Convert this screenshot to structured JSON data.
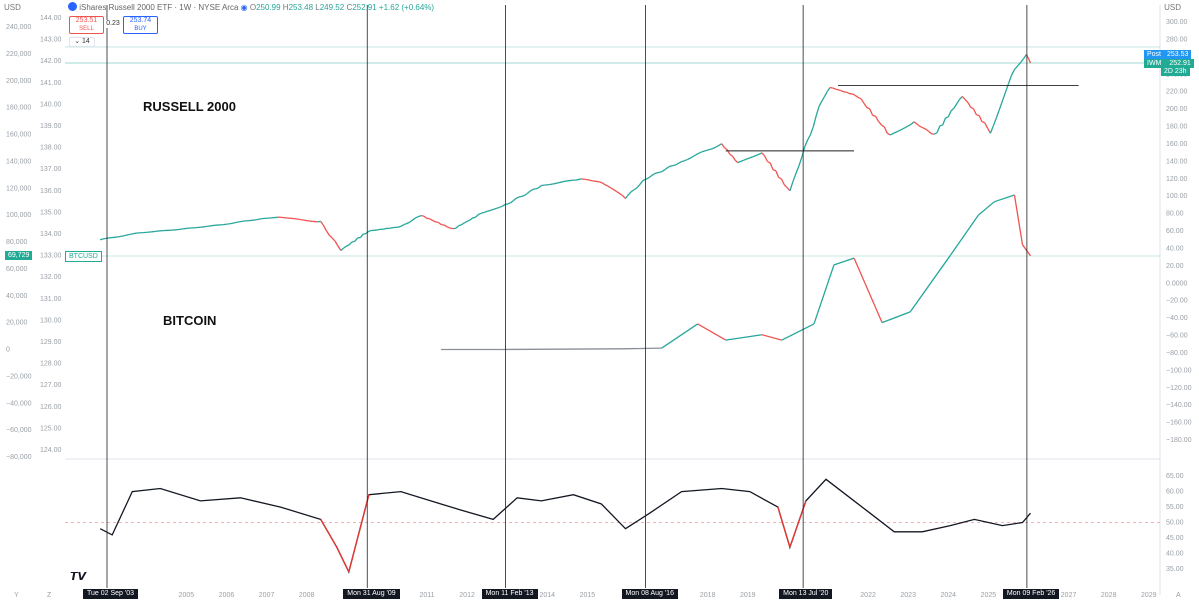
{
  "header": {
    "currency_left": "USD",
    "currency_right": "USD",
    "symbol_title": "iShares Russell 2000 ETF · 1W · NYSE Arca",
    "ohlc": {
      "o": "250.99",
      "h": "253.48",
      "l": "249.52",
      "c": "252.91",
      "change": "+1.62 (+0.64%)"
    },
    "sell_price": "253.51",
    "sell_label": "SELL",
    "spread": "0.23",
    "buy_price": "253.74",
    "buy_label": "BUY",
    "indicator_count": "14"
  },
  "colors": {
    "up": "#26a69a",
    "down": "#ef5350",
    "rsi": "#131722",
    "rsi_ma": "#ef9a9a",
    "rsi_low": "#e53935",
    "tag_iwm": "#22ab94",
    "tag_post": "#2196f3"
  },
  "price_tags": {
    "post_label": "Post",
    "post_value": "253.53",
    "iwm_label": "IWM",
    "iwm_value": "252.91",
    "countdown": "2D 23h",
    "btc_label": "BTCUSD",
    "btc_value": "69,729"
  },
  "annotations": {
    "russell": "RUSSELL 2000",
    "bitcoin": "BITCOIN"
  },
  "axes": {
    "left_outer": [
      "240,000",
      "220,000",
      "200,000",
      "180,000",
      "160,000",
      "140,000",
      "120,000",
      "100,000",
      "80,000",
      "60,000",
      "40,000",
      "20,000",
      "0",
      "−20,000",
      "−40,000",
      "−60,000",
      "−80,000"
    ],
    "left_inner": [
      "144.00",
      "143.00",
      "142.00",
      "141.00",
      "140.00",
      "139.00",
      "138.00",
      "137.00",
      "136.00",
      "135.00",
      "134.00",
      "133.00",
      "132.00",
      "131.00",
      "130.00",
      "129.00",
      "128.00",
      "127.00",
      "126.00",
      "125.00",
      "124.00"
    ],
    "right_price": [
      "300.00",
      "280.00",
      "260.00",
      "240.00",
      "220.00",
      "200.00",
      "180.00",
      "160.00",
      "140.00",
      "120.00",
      "100.00",
      "80.00",
      "60.00",
      "40.00",
      "20.00",
      "0.0000",
      "−20.00",
      "−40.00",
      "−60.00",
      "−80.00",
      "−100.00",
      "−120.00",
      "−140.00",
      "−160.00",
      "−180.00"
    ],
    "right_rsi": [
      "65.00",
      "60.00",
      "55.00",
      "50.00",
      "45.00",
      "40.00",
      "35.00"
    ],
    "years": [
      "2005",
      "2006",
      "2007",
      "2008",
      "2011",
      "2012",
      "2014",
      "2015",
      "2018",
      "2019",
      "2022",
      "2023",
      "2024",
      "2025",
      "2027",
      "2028",
      "2029"
    ],
    "corner_left": "Y",
    "corner_z": "Z",
    "corner_right": "A"
  },
  "date_markers": [
    "Tue 02 Sep '03",
    "Mon 31 Aug '09",
    "Mon 11 Feb '13",
    "Mon 08 Aug '16",
    "Mon 13 Jul '20",
    "Mon 09 Feb '26"
  ],
  "chart_data": [
    {
      "type": "line",
      "title": "iShares Russell 2000 ETF · 1W · NYSE Arca",
      "series": [
        {
          "name": "IWM",
          "x": [
            2003.0,
            2004.0,
            2005.0,
            2006.0,
            2007.0,
            2007.5,
            2008.5,
            2009.0,
            2009.7,
            2010.5,
            2011.0,
            2011.8,
            2012.5,
            2013.1,
            2014.0,
            2015.0,
            2015.5,
            2016.1,
            2016.6,
            2017.5,
            2018.5,
            2018.9,
            2019.5,
            2020.2,
            2020.5,
            2021.0,
            2021.2,
            2021.9,
            2022.7,
            2023.3,
            2023.8,
            2024.5,
            2025.2,
            2025.8,
            2026.1,
            2026.2
          ],
          "values": [
            50,
            58,
            62,
            67,
            74,
            76,
            70,
            38,
            60,
            65,
            78,
            62,
            80,
            90,
            112,
            120,
            116,
            98,
            120,
            140,
            160,
            138,
            150,
            105,
            145,
            210,
            225,
            215,
            170,
            185,
            170,
            215,
            175,
            245,
            263,
            253
          ]
        }
      ],
      "ylim": [
        -180,
        300
      ]
    },
    {
      "type": "line",
      "title": "BTCUSD",
      "series": [
        {
          "name": "BTCUSD",
          "x": [
            2011.5,
            2013.0,
            2016.0,
            2017.0,
            2017.9,
            2018.6,
            2019.5,
            2020.0,
            2020.8,
            2021.3,
            2021.8,
            2022.5,
            2023.2,
            2024.2,
            2024.9,
            2025.3,
            2025.8,
            2026.0,
            2026.2
          ],
          "values": [
            0,
            0,
            500,
            1000,
            19000,
            7000,
            11000,
            7000,
            19000,
            63000,
            68000,
            20000,
            28000,
            70000,
            100000,
            110000,
            115000,
            78000,
            69729
          ]
        }
      ],
      "ylim": [
        -80000,
        240000
      ]
    },
    {
      "type": "line",
      "title": "RSI",
      "series": [
        {
          "name": "RSI",
          "x": [
            2003.0,
            2003.3,
            2003.8,
            2004.5,
            2005.5,
            2006.5,
            2007.5,
            2008.5,
            2008.9,
            2009.2,
            2009.7,
            2010.5,
            2011.5,
            2012.0,
            2012.8,
            2013.4,
            2014.0,
            2014.8,
            2015.5,
            2016.1,
            2016.7,
            2017.5,
            2018.5,
            2019.2,
            2019.9,
            2020.2,
            2020.6,
            2021.1,
            2021.6,
            2022.2,
            2022.8,
            2023.5,
            2024.2,
            2024.8,
            2025.5,
            2026.0,
            2026.2
          ],
          "values": [
            48,
            46,
            60,
            61,
            57,
            58,
            55,
            51,
            42,
            34,
            59,
            60,
            56,
            54,
            51,
            58,
            57,
            59,
            56,
            48,
            53,
            60,
            61,
            60,
            55,
            42,
            57,
            64,
            59,
            53,
            47,
            47,
            49,
            51,
            49,
            50,
            53
          ]
        }
      ],
      "ylim": [
        33,
        67
      ]
    }
  ]
}
